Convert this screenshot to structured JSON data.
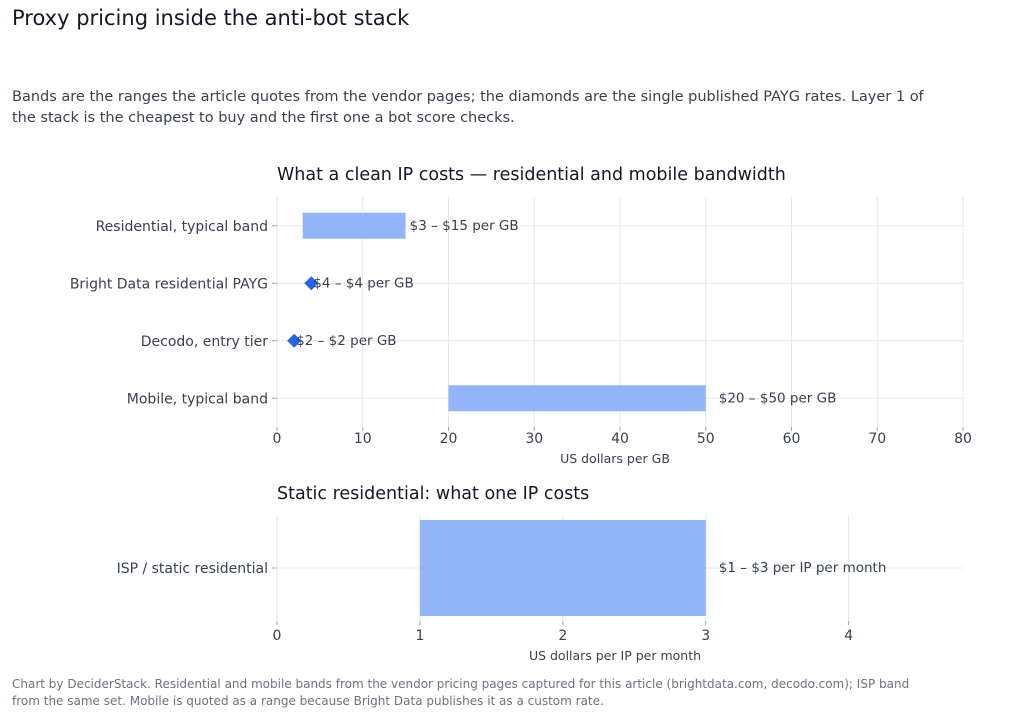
{
  "header": {
    "title": "Proxy pricing inside the anti-bot stack",
    "subtitle": "Bands are the ranges the article quotes from the vendor pages; the diamonds are the single published PAYG rates. Layer 1 of the stack is the cheapest to buy and the first one a bot score checks."
  },
  "footer": {
    "note": "Chart by DeciderStack. Residential and mobile bands from the vendor pricing pages captured for this article (brightdata.com, decodo.com); ISP band from the same set. Mobile is quoted as a range because Bright Data publishes it as a custom rate."
  },
  "colors": {
    "band": "#93b4f8",
    "diamond": "#2563eb",
    "grid": "#e5e7eb",
    "text": "#374151"
  },
  "chart_data": [
    {
      "type": "bar",
      "orientation": "horizontal-range",
      "title": "What a clean IP costs — residential and mobile bandwidth",
      "xlabel": "US dollars per GB",
      "xlim": [
        0,
        80
      ],
      "xticks": [
        0,
        10,
        20,
        30,
        40,
        50,
        60,
        70,
        80
      ],
      "grid": true,
      "rows": [
        {
          "label": "Residential, typical band",
          "low": 3,
          "high": 15,
          "mark": "band",
          "annotation": "$3 – $15 per GB"
        },
        {
          "label": "Bright Data residential PAYG",
          "low": 4,
          "high": 4,
          "mark": "diamond",
          "annotation": "$4 – $4 per GB"
        },
        {
          "label": "Decodo, entry tier",
          "low": 2,
          "high": 2,
          "mark": "diamond",
          "annotation": "$2 – $2 per GB"
        },
        {
          "label": "Mobile, typical band",
          "low": 20,
          "high": 50,
          "mark": "band",
          "annotation": "$20 – $50 per GB"
        }
      ]
    },
    {
      "type": "bar",
      "orientation": "horizontal-range",
      "title": "Static residential: what one IP costs",
      "xlabel": "US dollars per IP per month",
      "xlim": [
        0,
        4.8
      ],
      "xticks": [
        0,
        1,
        2,
        3,
        4
      ],
      "grid": true,
      "rows": [
        {
          "label": "ISP / static residential",
          "low": 1,
          "high": 3,
          "mark": "band",
          "annotation": "$1 – $3 per IP per month"
        }
      ]
    }
  ]
}
